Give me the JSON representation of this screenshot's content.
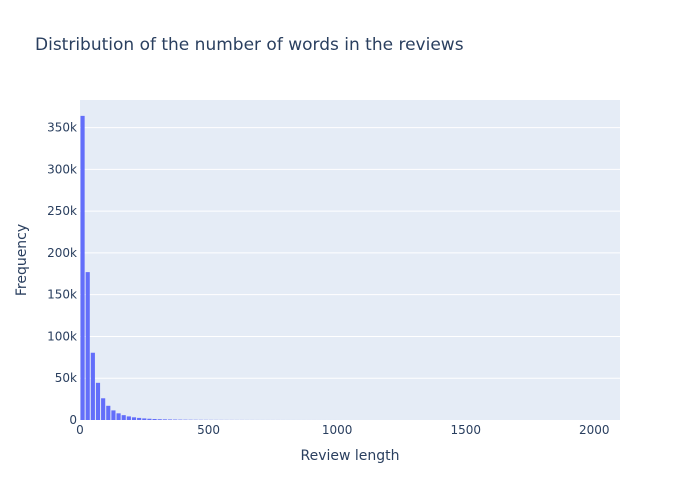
{
  "chart_data": {
    "type": "bar",
    "title": "Distribution of the number of words in the reviews",
    "xlabel": "Review length",
    "ylabel": "Frequency",
    "xlim": [
      0,
      2100
    ],
    "ylim": [
      0,
      383000
    ],
    "bin_width": 20,
    "x_ticks": [
      {
        "value": 0,
        "label": "0"
      },
      {
        "value": 500,
        "label": "500"
      },
      {
        "value": 1000,
        "label": "1000"
      },
      {
        "value": 1500,
        "label": "1500"
      },
      {
        "value": 2000,
        "label": "2000"
      }
    ],
    "y_ticks": [
      {
        "value": 0,
        "label": "0"
      },
      {
        "value": 50000,
        "label": "50k"
      },
      {
        "value": 100000,
        "label": "100k"
      },
      {
        "value": 150000,
        "label": "150k"
      },
      {
        "value": 200000,
        "label": "200k"
      },
      {
        "value": 250000,
        "label": "250k"
      },
      {
        "value": 300000,
        "label": "300k"
      },
      {
        "value": 350000,
        "label": "350k"
      }
    ],
    "grid": true,
    "colors": {
      "bar": "#636efa",
      "plot_bg": "#e5ecf6",
      "grid": "#ffffff",
      "text": "#2a3f5f"
    },
    "x": [
      0,
      20,
      40,
      60,
      80,
      100,
      120,
      140,
      160,
      180,
      200,
      220,
      240,
      260,
      280,
      300,
      320,
      340,
      360,
      380,
      400,
      420,
      440,
      460,
      480,
      500,
      520,
      540,
      560,
      580,
      600,
      620,
      640,
      660,
      680,
      700,
      720,
      740,
      760,
      780,
      800,
      820,
      840,
      860,
      880,
      900,
      920,
      940,
      960,
      980,
      1000
    ],
    "values": [
      364000,
      177000,
      80500,
      44500,
      26000,
      17000,
      11500,
      8000,
      5800,
      4300,
      3200,
      2500,
      1900,
      1500,
      1200,
      950,
      780,
      640,
      530,
      440,
      370,
      310,
      260,
      220,
      190,
      160,
      140,
      120,
      105,
      92,
      80,
      70,
      62,
      55,
      48,
      43,
      38,
      34,
      30,
      27,
      24,
      21,
      19,
      17,
      15,
      14,
      12,
      11,
      10,
      9,
      8
    ]
  }
}
